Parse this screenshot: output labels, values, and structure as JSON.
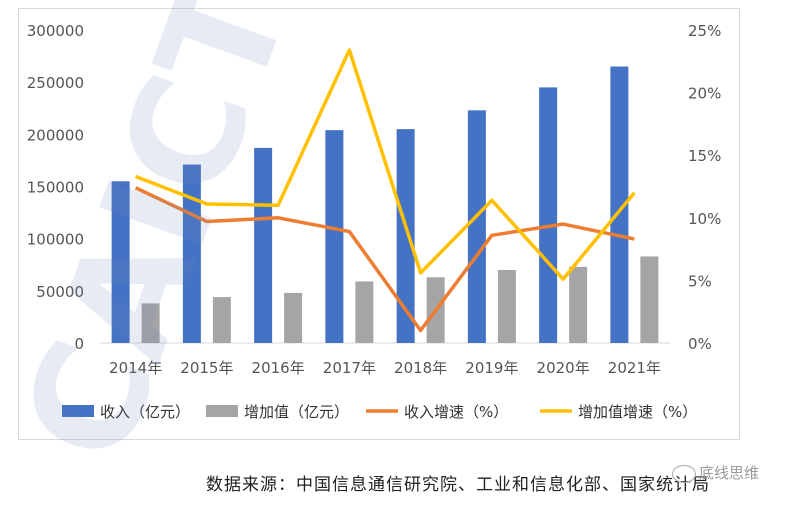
{
  "chart_data": {
    "type": "bar+line",
    "categories": [
      "2014年",
      "2015年",
      "2016年",
      "2017年",
      "2018年",
      "2019年",
      "2020年",
      "2021年"
    ],
    "series": [
      {
        "name": "收入（亿元）",
        "kind": "bar",
        "axis": "left",
        "color": "#4472C4",
        "values": [
          155000,
          171000,
          187000,
          204000,
          205000,
          223000,
          245000,
          265000
        ]
      },
      {
        "name": "增加值（亿元）",
        "kind": "bar",
        "axis": "left",
        "color": "#A5A5A5",
        "values": [
          38000,
          44000,
          48000,
          59000,
          63000,
          70000,
          73000,
          83000
        ]
      },
      {
        "name": "收入增速（%）",
        "kind": "line",
        "axis": "right",
        "color": "#ED7D31",
        "values": [
          12.4,
          9.7,
          10.0,
          8.9,
          1.0,
          8.6,
          9.5,
          8.3
        ]
      },
      {
        "name": "增加值增速（%）",
        "kind": "line",
        "axis": "right",
        "color": "#FFC000",
        "values": [
          13.3,
          11.1,
          11.0,
          23.4,
          5.6,
          11.4,
          5.1,
          12.0
        ]
      }
    ],
    "left_axis": {
      "min": 0,
      "max": 300000,
      "ticks": [
        "0",
        "50000",
        "100000",
        "150000",
        "200000",
        "250000",
        "300000"
      ]
    },
    "right_axis": {
      "min": 0,
      "max": 25,
      "ticks": [
        "0%",
        "5%",
        "10%",
        "15%",
        "20%",
        "25%"
      ]
    },
    "legend_position": "bottom",
    "grid": false
  },
  "source_text": "数据来源：中国信息通信研究院、工业和信息化部、国家统计局",
  "brand_text": "底线思维",
  "watermark_text": "CAICT"
}
